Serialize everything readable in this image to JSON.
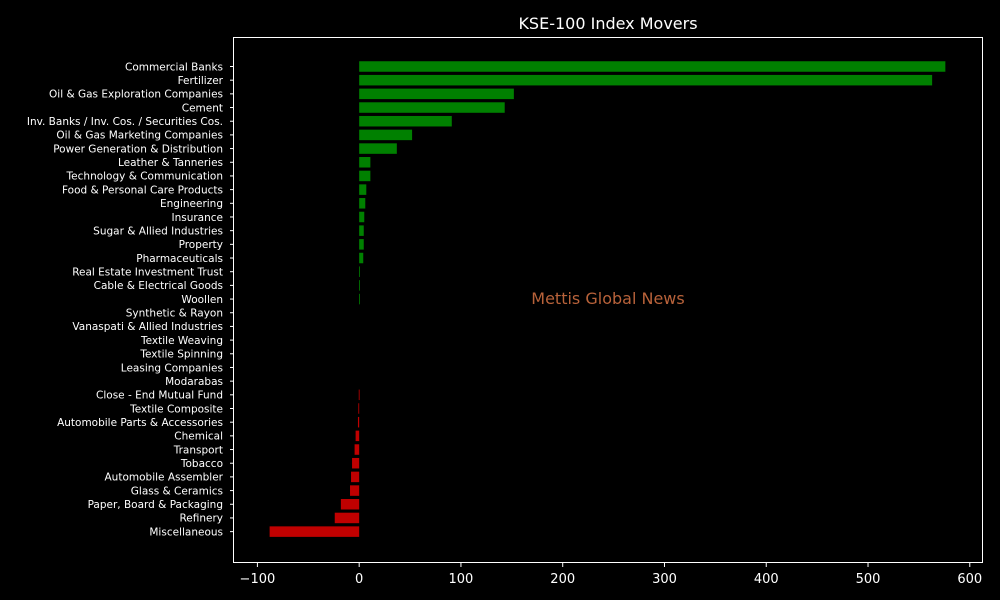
{
  "chart_data": {
    "type": "bar",
    "orientation": "horizontal",
    "title": "KSE-100 Index Movers",
    "watermark": "Mettis Global News",
    "xlim": [
      -123,
      612
    ],
    "xticks": [
      -100,
      0,
      100,
      200,
      300,
      400,
      500,
      600
    ],
    "xtick_labels": [
      "−100",
      "0",
      "100",
      "200",
      "300",
      "400",
      "500",
      "600"
    ],
    "grid": false,
    "colors": {
      "positive": "#008000",
      "negative": "#c00000",
      "background": "#000000",
      "text": "#ffffff",
      "watermark": "#b8623a"
    },
    "categories": [
      "Commercial Banks",
      "Fertilizer",
      "Oil & Gas Exploration Companies",
      "Cement",
      "Inv. Banks / Inv. Cos. / Securities Cos.",
      "Oil & Gas Marketing Companies",
      "Power Generation & Distribution",
      "Leather & Tanneries",
      "Technology & Communication",
      "Food & Personal Care Products",
      "Engineering",
      "Insurance",
      "Sugar & Allied Industries",
      "Property",
      "Pharmaceuticals",
      "Real Estate Investment Trust",
      "Cable & Electrical Goods",
      "Woollen",
      "Synthetic & Rayon",
      "Vanaspati & Allied Industries",
      "Textile Weaving",
      "Textile Spinning",
      "Leasing Companies",
      "Modarabas",
      "Close - End Mutual Fund",
      "Textile Composite",
      "Automobile Parts & Accessories",
      "Chemical",
      "Transport",
      "Tobacco",
      "Automobile Assembler",
      "Glass & Ceramics",
      "Paper, Board & Packaging",
      "Refinery",
      "Miscellaneous"
    ],
    "values": [
      576,
      563,
      152,
      143,
      91,
      52,
      37,
      11,
      11,
      7,
      6,
      5,
      4.5,
      4.5,
      4,
      0.6,
      0.5,
      0.4,
      0,
      0,
      0,
      0,
      0,
      0,
      -0.4,
      -0.8,
      -1.2,
      -3.5,
      -4.5,
      -7,
      -8,
      -9,
      -18,
      -24,
      -88
    ]
  }
}
